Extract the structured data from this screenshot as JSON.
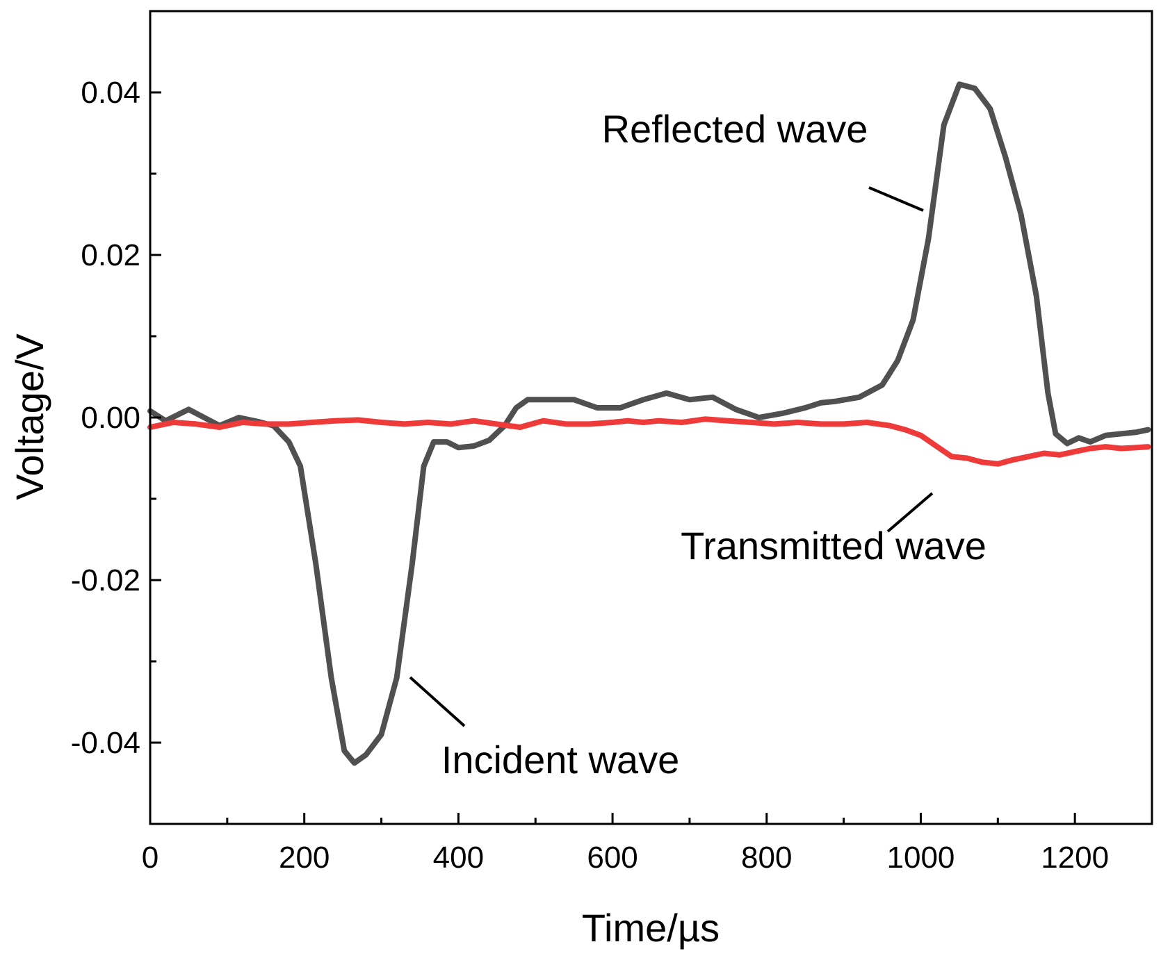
{
  "chart_data": {
    "type": "line",
    "title": "",
    "xlabel": "Time/µs",
    "ylabel": "Voltage/V",
    "xlim": [
      0,
      1300
    ],
    "ylim": [
      -0.05,
      0.05
    ],
    "x_major_ticks": [
      0,
      200,
      400,
      600,
      800,
      1000,
      1200
    ],
    "x_tick_labels": [
      "0",
      "200",
      "400",
      "600",
      "800",
      "1000",
      "1200"
    ],
    "y_major_ticks": [
      0.04,
      0.02,
      0.0,
      -0.02,
      -0.04
    ],
    "y_tick_labels": [
      "0.04",
      "0.02",
      "0.00",
      "-0.02",
      "-0.04"
    ],
    "grid": false,
    "series": [
      {
        "name": "Incident/Reflected wave",
        "color": "#505050",
        "points": [
          [
            0,
            0.0008
          ],
          [
            20,
            -0.0004
          ],
          [
            50,
            0.001
          ],
          [
            70,
            0.0
          ],
          [
            90,
            -0.001
          ],
          [
            115,
            0.0
          ],
          [
            140,
            -0.0005
          ],
          [
            160,
            -0.001
          ],
          [
            180,
            -0.003
          ],
          [
            195,
            -0.006
          ],
          [
            215,
            -0.018
          ],
          [
            235,
            -0.032
          ],
          [
            252,
            -0.041
          ],
          [
            265,
            -0.0425
          ],
          [
            280,
            -0.0415
          ],
          [
            300,
            -0.039
          ],
          [
            320,
            -0.032
          ],
          [
            340,
            -0.018
          ],
          [
            355,
            -0.006
          ],
          [
            368,
            -0.003
          ],
          [
            385,
            -0.003
          ],
          [
            400,
            -0.0037
          ],
          [
            420,
            -0.0035
          ],
          [
            440,
            -0.0028
          ],
          [
            460,
            -0.001
          ],
          [
            475,
            0.0012
          ],
          [
            490,
            0.0022
          ],
          [
            520,
            0.0022
          ],
          [
            550,
            0.0022
          ],
          [
            580,
            0.0012
          ],
          [
            610,
            0.0012
          ],
          [
            640,
            0.0022
          ],
          [
            670,
            0.003
          ],
          [
            700,
            0.0022
          ],
          [
            730,
            0.0025
          ],
          [
            760,
            0.001
          ],
          [
            790,
            0.0
          ],
          [
            820,
            0.0005
          ],
          [
            850,
            0.0012
          ],
          [
            870,
            0.0018
          ],
          [
            890,
            0.002
          ],
          [
            920,
            0.0025
          ],
          [
            950,
            0.004
          ],
          [
            970,
            0.007
          ],
          [
            990,
            0.012
          ],
          [
            1010,
            0.022
          ],
          [
            1030,
            0.036
          ],
          [
            1050,
            0.041
          ],
          [
            1070,
            0.0405
          ],
          [
            1090,
            0.038
          ],
          [
            1110,
            0.032
          ],
          [
            1130,
            0.025
          ],
          [
            1150,
            0.015
          ],
          [
            1165,
            0.003
          ],
          [
            1175,
            -0.002
          ],
          [
            1190,
            -0.0032
          ],
          [
            1205,
            -0.0025
          ],
          [
            1220,
            -0.003
          ],
          [
            1240,
            -0.0022
          ],
          [
            1260,
            -0.002
          ],
          [
            1280,
            -0.0018
          ],
          [
            1295,
            -0.0015
          ]
        ]
      },
      {
        "name": "Transmitted wave",
        "color": "#ef3a3a",
        "points": [
          [
            0,
            -0.0012
          ],
          [
            30,
            -0.0006
          ],
          [
            60,
            -0.0008
          ],
          [
            90,
            -0.0012
          ],
          [
            120,
            -0.0006
          ],
          [
            150,
            -0.0008
          ],
          [
            180,
            -0.0008
          ],
          [
            210,
            -0.0006
          ],
          [
            240,
            -0.0004
          ],
          [
            270,
            -0.0003
          ],
          [
            300,
            -0.0006
          ],
          [
            330,
            -0.0008
          ],
          [
            360,
            -0.0006
          ],
          [
            390,
            -0.0008
          ],
          [
            420,
            -0.0004
          ],
          [
            450,
            -0.0008
          ],
          [
            480,
            -0.0012
          ],
          [
            510,
            -0.0004
          ],
          [
            540,
            -0.0008
          ],
          [
            570,
            -0.0008
          ],
          [
            600,
            -0.0006
          ],
          [
            620,
            -0.0004
          ],
          [
            640,
            -0.0006
          ],
          [
            660,
            -0.0004
          ],
          [
            690,
            -0.0006
          ],
          [
            720,
            -0.0002
          ],
          [
            750,
            -0.0004
          ],
          [
            780,
            -0.0006
          ],
          [
            810,
            -0.0008
          ],
          [
            840,
            -0.0006
          ],
          [
            870,
            -0.0008
          ],
          [
            900,
            -0.0008
          ],
          [
            930,
            -0.0006
          ],
          [
            960,
            -0.001
          ],
          [
            980,
            -0.0015
          ],
          [
            1000,
            -0.0022
          ],
          [
            1020,
            -0.0035
          ],
          [
            1040,
            -0.0048
          ],
          [
            1060,
            -0.005
          ],
          [
            1080,
            -0.0055
          ],
          [
            1100,
            -0.0057
          ],
          [
            1120,
            -0.0052
          ],
          [
            1140,
            -0.0048
          ],
          [
            1160,
            -0.0044
          ],
          [
            1180,
            -0.0046
          ],
          [
            1200,
            -0.0042
          ],
          [
            1220,
            -0.0038
          ],
          [
            1240,
            -0.0036
          ],
          [
            1260,
            -0.0038
          ],
          [
            1280,
            -0.0037
          ],
          [
            1295,
            -0.0036
          ]
        ]
      }
    ],
    "annotations": [
      {
        "text": "Reflected wave",
        "label_at": [
          960,
          0.035
        ],
        "line_from": [
          1005,
          0.031
        ],
        "line_to": [
          1000,
          0.0285
        ]
      },
      {
        "text": "Transmitted wave",
        "label_at": [
          1010,
          -0.0175
        ],
        "line_from": [
          1005,
          -0.0065
        ],
        "line_to": [
          1001,
          -0.009
        ]
      },
      {
        "text": "Incident wave",
        "label_at": [
          588,
          -0.0425
        ],
        "line_from": [
          335,
          -0.033
        ],
        "line_to": [
          343,
          -0.037
        ]
      }
    ]
  }
}
